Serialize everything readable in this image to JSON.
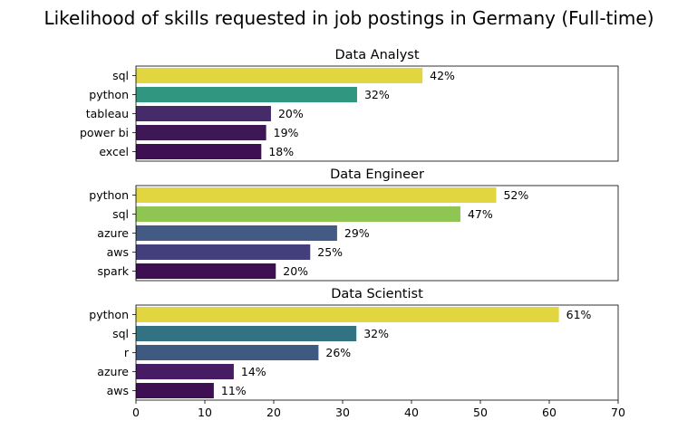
{
  "chart_data": {
    "title": "Likelihood of skills requested in job postings in Germany (Full-time)",
    "type": "bar",
    "orientation": "horizontal",
    "xlim": [
      0,
      70
    ],
    "x_ticks": [
      "0",
      "10",
      "20",
      "30",
      "40",
      "50",
      "60",
      "70"
    ],
    "grid": false,
    "colormap": "viridis",
    "panels": [
      {
        "title": "Data Analyst",
        "categories": [
          "sql",
          "python",
          "tableau",
          "power bi",
          "excel"
        ],
        "values": [
          41.6,
          32.1,
          19.6,
          18.9,
          18.2
        ],
        "labels": [
          "42%",
          "32%",
          "20%",
          "19%",
          "18%"
        ],
        "colors": [
          "#e1d63f",
          "#31967f",
          "#452b6a",
          "#3e1856",
          "#3e0f52"
        ]
      },
      {
        "title": "Data Engineer",
        "categories": [
          "python",
          "sql",
          "azure",
          "aws",
          "spark"
        ],
        "values": [
          52.3,
          47.1,
          29.2,
          25.3,
          20.3
        ],
        "labels": [
          "52%",
          "47%",
          "29%",
          "25%",
          "20%"
        ],
        "colors": [
          "#e1d63f",
          "#8fc653",
          "#435a85",
          "#433f7c",
          "#3e0f52"
        ]
      },
      {
        "title": "Data Scientist",
        "categories": [
          "python",
          "sql",
          "r",
          "azure",
          "aws"
        ],
        "values": [
          61.4,
          32.0,
          26.5,
          14.2,
          11.3
        ],
        "labels": [
          "61%",
          "32%",
          "26%",
          "14%",
          "11%"
        ],
        "colors": [
          "#e1d63f",
          "#337283",
          "#3f5a81",
          "#461d65",
          "#3e0f52"
        ]
      }
    ]
  }
}
